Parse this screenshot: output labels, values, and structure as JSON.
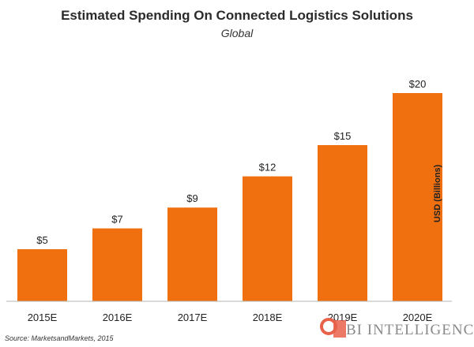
{
  "chart_data": {
    "type": "bar",
    "title": "Estimated Spending On Connected Logistics Solutions",
    "subtitle": "Global",
    "categories": [
      "2015E",
      "2016E",
      "2017E",
      "2018E",
      "2019E",
      "2020E"
    ],
    "values": [
      5,
      7,
      9,
      12,
      15,
      20
    ],
    "value_labels": [
      "$5",
      "$7",
      "$9",
      "$12",
      "$15",
      "$20"
    ],
    "xlabel": "",
    "ylabel": "USD (Billions)",
    "ylim": [
      0,
      20
    ],
    "grid": false,
    "bar_color": "#f07010"
  },
  "source": "Source: MarketsandMarkets, 2015",
  "logo": {
    "text": "BI INTELLIGENCE",
    "mark_color": "#e8624a"
  }
}
